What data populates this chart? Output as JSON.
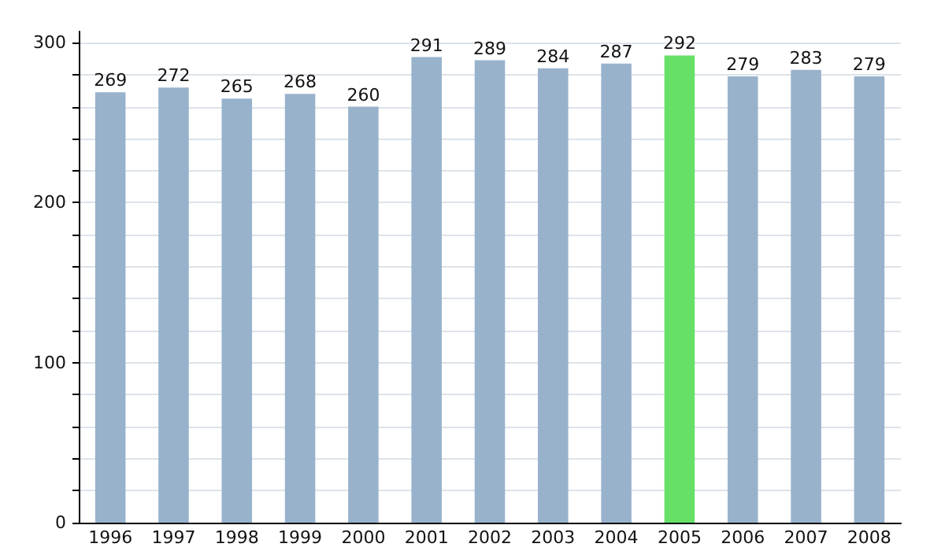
{
  "chart_data": {
    "type": "bar",
    "categories": [
      "1996",
      "1997",
      "1998",
      "1999",
      "2000",
      "2001",
      "2002",
      "2003",
      "2004",
      "2005",
      "2006",
      "2007",
      "2008"
    ],
    "values": [
      269,
      272,
      265,
      268,
      260,
      291,
      289,
      284,
      287,
      292,
      279,
      283,
      279
    ],
    "colors": [
      "#98b2cc",
      "#98b2cc",
      "#98b2cc",
      "#98b2cc",
      "#98b2cc",
      "#98b2cc",
      "#98b2cc",
      "#98b2cc",
      "#98b2cc",
      "#66e066",
      "#98b2cc",
      "#98b2cc",
      "#98b2cc"
    ],
    "ylim": [
      0,
      307
    ],
    "yticks": [
      0,
      {
        "value": 20,
        "label": null
      },
      {
        "value": 40,
        "label": null
      },
      {
        "value": 60,
        "label": null
      },
      {
        "value": 80,
        "label": null
      },
      100,
      {
        "value": 120,
        "label": null
      },
      {
        "value": 140,
        "label": null
      },
      {
        "value": 160,
        "label": null
      },
      {
        "value": 180,
        "label": null
      },
      200,
      {
        "value": 220,
        "label": null
      },
      {
        "value": 240,
        "label": null
      },
      {
        "value": 260,
        "label": null
      },
      {
        "value": 280,
        "label": null
      },
      300
    ],
    "grid": true,
    "data_labels": true
  }
}
